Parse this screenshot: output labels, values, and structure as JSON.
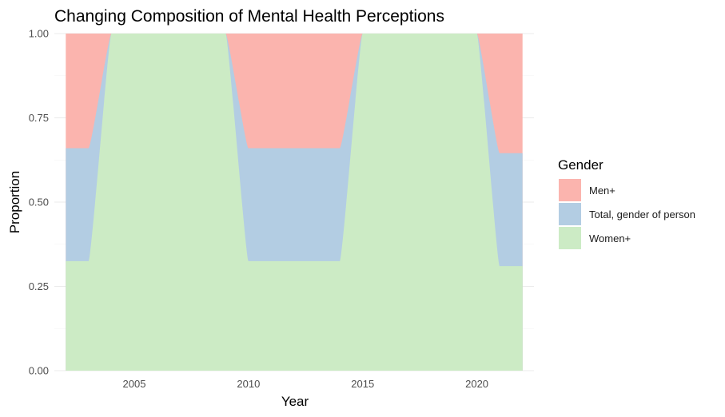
{
  "chart_data": {
    "type": "area",
    "stacked": "fill",
    "title": "Changing Composition of Mental Health Perceptions",
    "xlabel": "Year",
    "ylabel": "Proportion",
    "xlim": [
      2001.5,
      2022.5
    ],
    "ylim": [
      0,
      1
    ],
    "x_ticks": [
      2005,
      2010,
      2015,
      2020
    ],
    "y_ticks": [
      0,
      0.25,
      0.5,
      0.75,
      1
    ],
    "y_tick_labels": [
      "0.00",
      "0.25",
      "0.50",
      "0.75",
      "1.00"
    ],
    "grid": true,
    "legend": {
      "title": "Gender",
      "position": "right"
    },
    "x": [
      2002,
      2003,
      2004,
      2009,
      2010,
      2011,
      2012,
      2013,
      2014,
      2015,
      2020,
      2021,
      2022
    ],
    "series": [
      {
        "name": "Men+",
        "color": "#fbb4ae",
        "values": [
          0.34,
          0.34,
          0,
          0,
          0.34,
          0.34,
          0.34,
          0.34,
          0.34,
          0,
          0,
          0.355,
          0.355
        ]
      },
      {
        "name": "Total, gender of person",
        "color": "#b3cde3",
        "values": [
          0.335,
          0.335,
          0,
          0,
          0.335,
          0.335,
          0.335,
          0.335,
          0.335,
          0,
          0,
          0.335,
          0.335
        ]
      },
      {
        "name": "Women+",
        "color": "#ccebc5",
        "values": [
          0.325,
          0.325,
          1,
          1,
          0.325,
          0.325,
          0.325,
          0.325,
          0.325,
          1,
          1,
          0.31,
          0.31
        ]
      }
    ]
  }
}
